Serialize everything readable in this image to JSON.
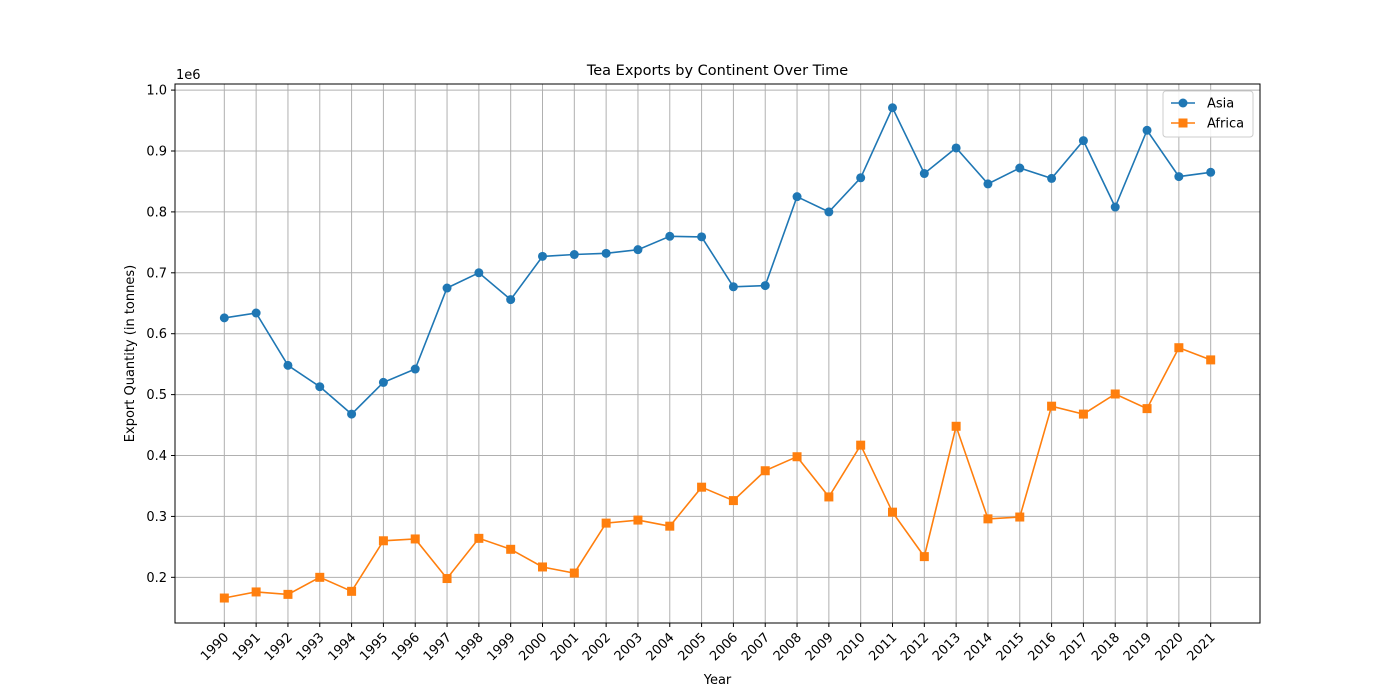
{
  "chart_data": {
    "type": "line",
    "title": "Tea Exports by Continent Over Time",
    "xlabel": "Year",
    "ylabel": "Export Quantity (in tonnes)",
    "y_offset_label": "1e6",
    "x": [
      1990,
      1991,
      1992,
      1993,
      1994,
      1995,
      1996,
      1997,
      1998,
      1999,
      2000,
      2001,
      2002,
      2003,
      2004,
      2005,
      2006,
      2007,
      2008,
      2009,
      2010,
      2011,
      2012,
      2013,
      2014,
      2015,
      2016,
      2017,
      2018,
      2019,
      2020,
      2021
    ],
    "xlim": [
      1988.45,
      2022.55
    ],
    "ylim": [
      0.125,
      1.01
    ],
    "yticks": [
      0.2,
      0.3,
      0.4,
      0.5,
      0.6,
      0.7,
      0.8,
      0.9,
      1.0
    ],
    "ytick_labels": [
      "0.2",
      "0.3",
      "0.4",
      "0.5",
      "0.6",
      "0.7",
      "0.8",
      "0.9",
      "1.0"
    ],
    "grid": true,
    "legend_position": "top-right",
    "series": [
      {
        "name": "Asia",
        "color": "#1f77b4",
        "marker": "circle",
        "values": [
          0.626,
          0.634,
          0.548,
          0.513,
          0.468,
          0.52,
          0.542,
          0.675,
          0.7,
          0.656,
          0.727,
          0.73,
          0.732,
          0.738,
          0.76,
          0.759,
          0.677,
          0.679,
          0.825,
          0.8,
          0.856,
          0.971,
          0.863,
          0.905,
          0.846,
          0.872,
          0.855,
          0.917,
          0.808,
          0.934,
          0.858,
          0.865
        ]
      },
      {
        "name": "Africa",
        "color": "#ff7f0e",
        "marker": "square",
        "values": [
          0.166,
          0.176,
          0.172,
          0.2,
          0.177,
          0.26,
          0.263,
          0.198,
          0.264,
          0.246,
          0.217,
          0.207,
          0.289,
          0.294,
          0.284,
          0.348,
          0.326,
          0.375,
          0.398,
          0.332,
          0.417,
          0.307,
          0.234,
          0.448,
          0.296,
          0.299,
          0.481,
          0.468,
          0.501,
          0.477,
          0.577,
          0.557
        ]
      }
    ]
  }
}
